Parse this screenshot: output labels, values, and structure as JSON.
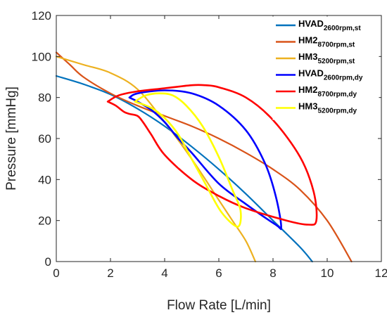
{
  "chart_data": {
    "type": "line",
    "xlabel": "Flow Rate [L/min]",
    "ylabel": "Pressure [mmHg]",
    "xlim": [
      0,
      12
    ],
    "ylim": [
      0,
      120
    ],
    "xticks": [
      "0",
      "2",
      "4",
      "6",
      "8",
      "10",
      "12"
    ],
    "yticks": [
      "0",
      "20",
      "40",
      "60",
      "80",
      "100",
      "120"
    ],
    "grid": false,
    "legend_position": "top-right",
    "series": [
      {
        "name": "HVAD",
        "subscript": "2600rpm,st",
        "color": "#0072BD",
        "points": [
          [
            0,
            90.5
          ],
          [
            1,
            86.5
          ],
          [
            2,
            81.5
          ],
          [
            3,
            74.5
          ],
          [
            4,
            66
          ],
          [
            5,
            56
          ],
          [
            6,
            45
          ],
          [
            7,
            33
          ],
          [
            8,
            20
          ],
          [
            9,
            7
          ],
          [
            9.45,
            0
          ]
        ]
      },
      {
        "name": "HM2",
        "subscript": "8700rpm,st",
        "color": "#D95319",
        "points": [
          [
            0,
            102
          ],
          [
            0.5,
            96
          ],
          [
            1,
            90
          ],
          [
            2,
            82
          ],
          [
            3,
            76
          ],
          [
            4,
            71
          ],
          [
            5,
            66
          ],
          [
            6,
            60
          ],
          [
            7,
            53
          ],
          [
            8,
            45
          ],
          [
            9,
            35
          ],
          [
            10,
            20
          ],
          [
            10.9,
            0
          ]
        ]
      },
      {
        "name": "HM3",
        "subscript": "5200rpm,st",
        "color": "#EDB120",
        "points": [
          [
            0,
            100
          ],
          [
            1,
            96
          ],
          [
            2,
            92
          ],
          [
            3,
            84
          ],
          [
            4,
            68
          ],
          [
            5,
            50
          ],
          [
            6,
            30
          ],
          [
            6.5,
            20
          ],
          [
            7,
            10
          ],
          [
            7.35,
            0
          ]
        ]
      },
      {
        "name": "HVAD",
        "subscript": "2600rpm,dy",
        "color": "#0000FF",
        "points": [
          [
            2.7,
            80
          ],
          [
            3,
            82
          ],
          [
            4,
            83.5
          ],
          [
            5,
            82
          ],
          [
            6,
            76
          ],
          [
            7,
            64
          ],
          [
            7.7,
            48
          ],
          [
            8.1,
            32
          ],
          [
            8.3,
            17
          ],
          [
            8.1,
            18
          ],
          [
            7,
            28
          ],
          [
            6,
            38
          ],
          [
            5,
            53
          ],
          [
            4.5,
            60
          ],
          [
            4,
            68
          ],
          [
            3.5,
            74
          ],
          [
            3,
            78
          ],
          [
            2.7,
            80
          ]
        ]
      },
      {
        "name": "HM2",
        "subscript": "8700rpm,dy",
        "color": "#FF0000",
        "points": [
          [
            1.9,
            78
          ],
          [
            2.3,
            81
          ],
          [
            3,
            83
          ],
          [
            4,
            84.5
          ],
          [
            5,
            86
          ],
          [
            5.5,
            86
          ],
          [
            6,
            85
          ],
          [
            7,
            80
          ],
          [
            8,
            69
          ],
          [
            9,
            51
          ],
          [
            9.5,
            34
          ],
          [
            9.6,
            20
          ],
          [
            9.3,
            18
          ],
          [
            8.5,
            20
          ],
          [
            7,
            26
          ],
          [
            6,
            32
          ],
          [
            5,
            40
          ],
          [
            4,
            52
          ],
          [
            3.5,
            62
          ],
          [
            3.2,
            68
          ],
          [
            3,
            71
          ],
          [
            2.7,
            72
          ],
          [
            2.5,
            73
          ],
          [
            2.2,
            76
          ],
          [
            1.9,
            78
          ]
        ]
      },
      {
        "name": "HM3",
        "subscript": "5200rpm,dy",
        "color": "#FFFF00",
        "points": [
          [
            2.9,
            78
          ],
          [
            3.3,
            81
          ],
          [
            3.8,
            82
          ],
          [
            4.3,
            81
          ],
          [
            4.8,
            76
          ],
          [
            5.4,
            66
          ],
          [
            6,
            51
          ],
          [
            6.5,
            35
          ],
          [
            6.8,
            25
          ],
          [
            6.7,
            17
          ],
          [
            6.1,
            24
          ],
          [
            5.5,
            38
          ],
          [
            5,
            50
          ],
          [
            4.5,
            62
          ],
          [
            4,
            70
          ],
          [
            3.5,
            75
          ],
          [
            2.9,
            78
          ]
        ]
      }
    ]
  }
}
